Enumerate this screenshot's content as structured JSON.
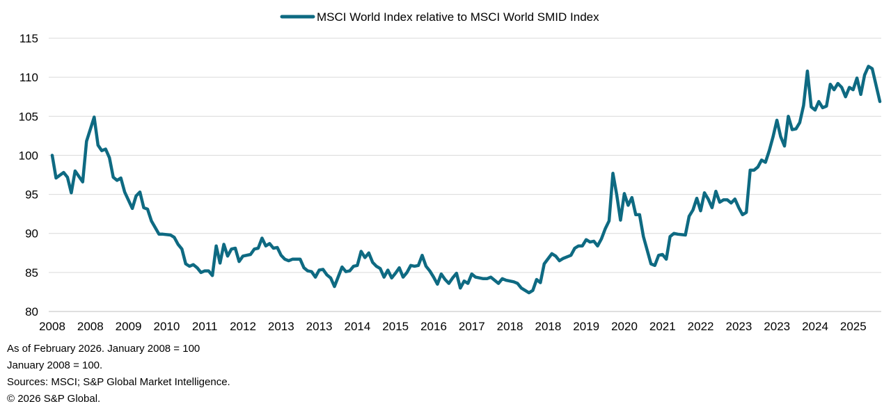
{
  "chart_data": {
    "type": "line",
    "title": "",
    "xlabel": "",
    "ylabel": "",
    "ylim": [
      80,
      115
    ],
    "yticks": [
      80,
      85,
      90,
      95,
      100,
      105,
      110,
      115
    ],
    "xtick_labels": [
      "2008",
      "2008",
      "2009",
      "2010",
      "2011",
      "2012",
      "2013",
      "2013",
      "2014",
      "2015",
      "2016",
      "2017",
      "2018",
      "2018",
      "2019",
      "2020",
      "2021",
      "2022",
      "2023",
      "2023",
      "2024",
      "2025"
    ],
    "x_range": [
      "2008-01",
      "2026-02"
    ],
    "grid": "horizontal",
    "legend": "top-center",
    "series": [
      {
        "name": "MSCI World Index relative to MSCI World SMID Index",
        "color": "#0e6a82",
        "points": [
          [
            "2008-01",
            100.0
          ],
          [
            "2008-02",
            97.1
          ],
          [
            "2008-04",
            97.8
          ],
          [
            "2008-05",
            97.2
          ],
          [
            "2008-06",
            95.2
          ],
          [
            "2008-07",
            98.0
          ],
          [
            "2008-09",
            96.6
          ],
          [
            "2008-10",
            101.8
          ],
          [
            "2008-12",
            104.9
          ],
          [
            "2009-01",
            101.3
          ],
          [
            "2009-02",
            100.6
          ],
          [
            "2009-03",
            100.8
          ],
          [
            "2009-04",
            99.7
          ],
          [
            "2009-05",
            97.2
          ],
          [
            "2009-06",
            96.8
          ],
          [
            "2009-07",
            97.1
          ],
          [
            "2009-08",
            95.3
          ],
          [
            "2009-10",
            93.2
          ],
          [
            "2009-11",
            94.8
          ],
          [
            "2009-12",
            95.3
          ],
          [
            "2010-01",
            93.3
          ],
          [
            "2010-02",
            93.1
          ],
          [
            "2010-03",
            91.6
          ],
          [
            "2010-05",
            89.9
          ],
          [
            "2010-06",
            89.9
          ],
          [
            "2010-08",
            89.8
          ],
          [
            "2010-09",
            89.5
          ],
          [
            "2010-10",
            88.6
          ],
          [
            "2010-11",
            88.0
          ],
          [
            "2010-12",
            86.1
          ],
          [
            "2011-01",
            85.8
          ],
          [
            "2011-02",
            86.0
          ],
          [
            "2011-03",
            85.6
          ],
          [
            "2011-04",
            85.0
          ],
          [
            "2011-05",
            85.2
          ],
          [
            "2011-06",
            85.2
          ],
          [
            "2011-07",
            84.6
          ],
          [
            "2011-08",
            88.4
          ],
          [
            "2011-09",
            86.2
          ],
          [
            "2011-10",
            88.6
          ],
          [
            "2011-11",
            87.1
          ],
          [
            "2011-12",
            88.0
          ],
          [
            "2012-01",
            88.1
          ],
          [
            "2012-02",
            86.4
          ],
          [
            "2012-03",
            87.1
          ],
          [
            "2012-05",
            87.3
          ],
          [
            "2012-06",
            88.0
          ],
          [
            "2012-07",
            88.1
          ],
          [
            "2012-08",
            89.4
          ],
          [
            "2012-09",
            88.4
          ],
          [
            "2012-10",
            88.7
          ],
          [
            "2012-11",
            88.1
          ],
          [
            "2012-12",
            88.2
          ],
          [
            "2013-01",
            87.2
          ],
          [
            "2013-02",
            86.7
          ],
          [
            "2013-03",
            86.5
          ],
          [
            "2013-04",
            86.7
          ],
          [
            "2013-06",
            86.7
          ],
          [
            "2013-07",
            85.6
          ],
          [
            "2013-08",
            85.2
          ],
          [
            "2013-09",
            85.1
          ],
          [
            "2013-10",
            84.4
          ],
          [
            "2013-11",
            85.3
          ],
          [
            "2013-12",
            85.4
          ],
          [
            "2014-01",
            84.7
          ],
          [
            "2014-02",
            84.3
          ],
          [
            "2014-03",
            83.2
          ],
          [
            "2014-05",
            85.7
          ],
          [
            "2014-06",
            85.1
          ],
          [
            "2014-07",
            85.2
          ],
          [
            "2014-08",
            85.8
          ],
          [
            "2014-09",
            85.9
          ],
          [
            "2014-10",
            87.7
          ],
          [
            "2014-11",
            86.9
          ],
          [
            "2014-12",
            87.5
          ],
          [
            "2015-01",
            86.3
          ],
          [
            "2015-02",
            85.8
          ],
          [
            "2015-03",
            85.5
          ],
          [
            "2015-04",
            84.4
          ],
          [
            "2015-05",
            85.3
          ],
          [
            "2015-06",
            84.3
          ],
          [
            "2015-07",
            84.9
          ],
          [
            "2015-08",
            85.6
          ],
          [
            "2015-09",
            84.4
          ],
          [
            "2015-10",
            85.0
          ],
          [
            "2015-11",
            85.9
          ],
          [
            "2015-12",
            85.8
          ],
          [
            "2016-01",
            85.9
          ],
          [
            "2016-02",
            87.2
          ],
          [
            "2016-03",
            85.8
          ],
          [
            "2016-04",
            85.2
          ],
          [
            "2016-05",
            84.4
          ],
          [
            "2016-06",
            83.5
          ],
          [
            "2016-07",
            84.8
          ],
          [
            "2016-08",
            84.1
          ],
          [
            "2016-09",
            83.6
          ],
          [
            "2016-10",
            84.3
          ],
          [
            "2016-11",
            84.9
          ],
          [
            "2016-12",
            83.0
          ],
          [
            "2017-01",
            83.9
          ],
          [
            "2017-02",
            83.6
          ],
          [
            "2017-03",
            84.8
          ],
          [
            "2017-04",
            84.4
          ],
          [
            "2017-06",
            84.2
          ],
          [
            "2017-07",
            84.2
          ],
          [
            "2017-08",
            84.4
          ],
          [
            "2017-09",
            84.0
          ],
          [
            "2017-10",
            83.6
          ],
          [
            "2017-11",
            84.2
          ],
          [
            "2017-12",
            84.0
          ],
          [
            "2018-02",
            83.8
          ],
          [
            "2018-03",
            83.6
          ],
          [
            "2018-04",
            83.0
          ],
          [
            "2018-06",
            82.4
          ],
          [
            "2018-07",
            82.7
          ],
          [
            "2018-08",
            84.1
          ],
          [
            "2018-09",
            83.7
          ],
          [
            "2018-10",
            86.1
          ],
          [
            "2018-12",
            87.4
          ],
          [
            "2019-01",
            87.1
          ],
          [
            "2019-02",
            86.5
          ],
          [
            "2019-03",
            86.8
          ],
          [
            "2019-05",
            87.2
          ],
          [
            "2019-06",
            88.1
          ],
          [
            "2019-07",
            88.4
          ],
          [
            "2019-08",
            88.4
          ],
          [
            "2019-09",
            89.2
          ],
          [
            "2019-10",
            88.9
          ],
          [
            "2019-11",
            89.0
          ],
          [
            "2019-12",
            88.4
          ],
          [
            "2020-01",
            89.3
          ],
          [
            "2020-02",
            90.6
          ],
          [
            "2020-03",
            91.6
          ],
          [
            "2020-04",
            97.7
          ],
          [
            "2020-05",
            95.0
          ],
          [
            "2020-06",
            91.7
          ],
          [
            "2020-07",
            95.1
          ],
          [
            "2020-08",
            93.6
          ],
          [
            "2020-09",
            94.6
          ],
          [
            "2020-10",
            92.4
          ],
          [
            "2020-11",
            92.4
          ],
          [
            "2020-12",
            89.6
          ],
          [
            "2021-02",
            86.1
          ],
          [
            "2021-03",
            85.9
          ],
          [
            "2021-04",
            87.2
          ],
          [
            "2021-05",
            87.3
          ],
          [
            "2021-06",
            86.7
          ],
          [
            "2021-07",
            89.6
          ],
          [
            "2021-08",
            90.0
          ],
          [
            "2021-09",
            89.9
          ],
          [
            "2021-11",
            89.8
          ],
          [
            "2021-12",
            92.2
          ],
          [
            "2022-01",
            93.0
          ],
          [
            "2022-02",
            94.5
          ],
          [
            "2022-03",
            92.9
          ],
          [
            "2022-04",
            95.2
          ],
          [
            "2022-05",
            94.4
          ],
          [
            "2022-06",
            93.3
          ],
          [
            "2022-07",
            95.4
          ],
          [
            "2022-08",
            94.0
          ],
          [
            "2022-09",
            94.3
          ],
          [
            "2022-10",
            94.3
          ],
          [
            "2022-11",
            93.9
          ],
          [
            "2022-12",
            94.4
          ],
          [
            "2023-01",
            93.3
          ],
          [
            "2023-02",
            92.4
          ],
          [
            "2023-03",
            92.7
          ],
          [
            "2023-04",
            98.1
          ],
          [
            "2023-05",
            98.1
          ],
          [
            "2023-06",
            98.5
          ],
          [
            "2023-07",
            99.4
          ],
          [
            "2023-08",
            99.1
          ],
          [
            "2023-09",
            100.6
          ],
          [
            "2023-10",
            102.4
          ],
          [
            "2023-11",
            104.5
          ],
          [
            "2023-12",
            102.4
          ],
          [
            "2024-01",
            101.2
          ],
          [
            "2024-02",
            105.0
          ],
          [
            "2024-03",
            103.3
          ],
          [
            "2024-04",
            103.4
          ],
          [
            "2024-05",
            104.2
          ],
          [
            "2024-06",
            106.4
          ],
          [
            "2024-07",
            110.8
          ],
          [
            "2024-08",
            106.2
          ],
          [
            "2024-09",
            105.8
          ],
          [
            "2024-10",
            106.9
          ],
          [
            "2024-11",
            106.1
          ],
          [
            "2024-12",
            106.3
          ],
          [
            "2025-01",
            109.1
          ],
          [
            "2025-02",
            108.4
          ],
          [
            "2025-03",
            109.2
          ],
          [
            "2025-04",
            108.7
          ],
          [
            "2025-05",
            107.5
          ],
          [
            "2025-06",
            108.7
          ],
          [
            "2025-07",
            108.4
          ],
          [
            "2025-08",
            109.9
          ],
          [
            "2025-09",
            107.8
          ],
          [
            "2025-10",
            110.3
          ],
          [
            "2025-11",
            111.4
          ],
          [
            "2025-12",
            111.1
          ],
          [
            "2026-02",
            106.9
          ]
        ]
      }
    ]
  },
  "footnotes": {
    "as_of": "As of February 2026. January 2008 = 100",
    "base": "January 2008 = 100.",
    "sources": "Sources: MSCI; S&P Global Market Intelligence.",
    "copyright": "© 2026 S&P Global."
  }
}
